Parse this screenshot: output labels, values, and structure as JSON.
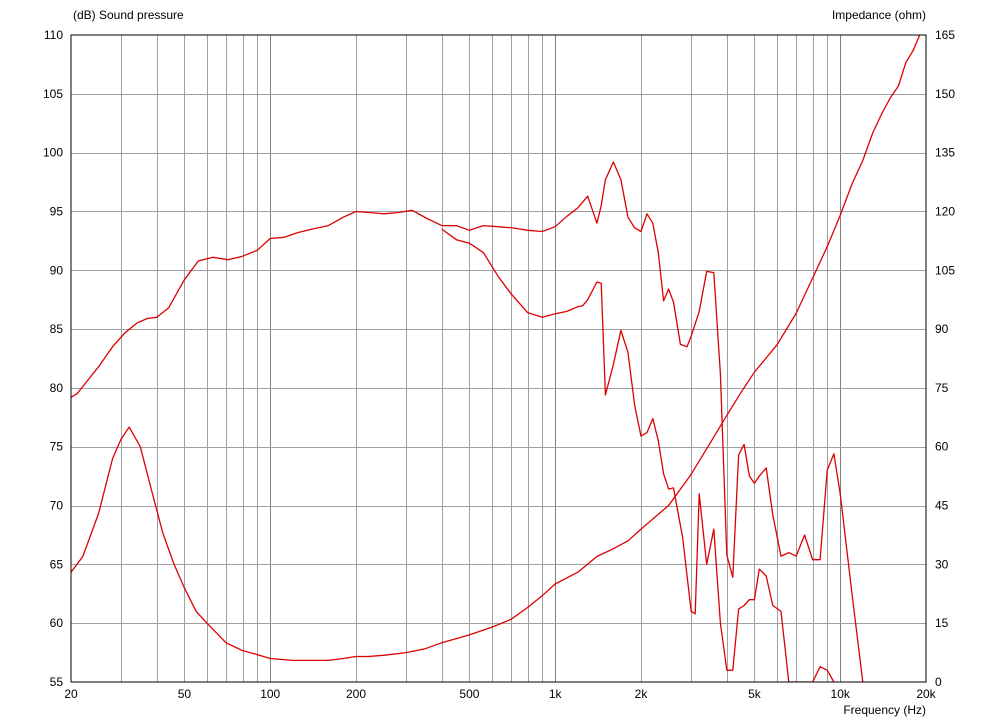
{
  "chart_data": {
    "type": "line",
    "title": "",
    "ylabel_left": "(dB)  Sound pressure",
    "ylabel_right": "Impedance  (ohm)",
    "xlabel": "Frequency  (Hz)",
    "x_scale": "log",
    "xlim": [
      20,
      20000
    ],
    "ylim_left": [
      55,
      110
    ],
    "ylim_right": [
      0,
      165
    ],
    "grid": true,
    "line_color": "#dd0000",
    "x_ticks": [
      {
        "value": 20,
        "label": "20"
      },
      {
        "value": 50,
        "label": "50"
      },
      {
        "value": 100,
        "label": "100"
      },
      {
        "value": 200,
        "label": "200"
      },
      {
        "value": 500,
        "label": "500"
      },
      {
        "value": 1000,
        "label": "1k"
      },
      {
        "value": 2000,
        "label": "2k"
      },
      {
        "value": 5000,
        "label": "5k"
      },
      {
        "value": 10000,
        "label": "10k"
      },
      {
        "value": 20000,
        "label": "20k"
      }
    ],
    "y_ticks_left": [
      "55",
      "60",
      "65",
      "70",
      "75",
      "80",
      "85",
      "90",
      "95",
      "100",
      "105",
      "110"
    ],
    "y_ticks_right": [
      "0",
      "15",
      "30",
      "45",
      "60",
      "75",
      "90",
      "105",
      "120",
      "135",
      "150",
      "165"
    ],
    "series": [
      {
        "axis": "left",
        "x": [
          20,
          21,
          25,
          28,
          31,
          34,
          37,
          40,
          44,
          50,
          56,
          63,
          71,
          80,
          90,
          100,
          112,
          125,
          140,
          160,
          180,
          200,
          225,
          250,
          280,
          315,
          355,
          400,
          450,
          500,
          560,
          630,
          710,
          800,
          900,
          1000,
          1100,
          1200,
          1300,
          1400,
          1450,
          1500,
          1600,
          1700,
          1800,
          1900,
          2000,
          2100,
          2200,
          2300,
          2400,
          2500,
          2600,
          2750,
          2900,
          3000,
          3200,
          3400,
          3600,
          3800,
          4000,
          4200,
          4400,
          4600,
          4800,
          5000,
          5200,
          5500,
          5800,
          6200,
          6600,
          7000,
          7500,
          8000,
          8500,
          9000,
          9500,
          10000,
          11000,
          12000
        ],
        "y": [
          79.2,
          79.5,
          81.8,
          83.5,
          84.7,
          85.5,
          85.9,
          86,
          86.8,
          89.2,
          90.8,
          91.1,
          90.9,
          91.2,
          91.7,
          92.7,
          92.8,
          93.2,
          93.5,
          93.8,
          94.5,
          95,
          94.9,
          94.8,
          94.9,
          95.1,
          94.4,
          93.8,
          93.8,
          93.4,
          93.8,
          93.7,
          93.6,
          93.4,
          93.3,
          93.7,
          94.6,
          95.3,
          96.3,
          94,
          95.5,
          97.7,
          99.2,
          97.7,
          94.5,
          93.6,
          93.3,
          94.8,
          94,
          91.5,
          87.4,
          88.4,
          87.3,
          83.7,
          83.5,
          84.4,
          86.5,
          89.9,
          89.8,
          81.2,
          65.8,
          63.9,
          74.3,
          75.2,
          72.5,
          71.9,
          72.5,
          73.2,
          69.2,
          65.7,
          66,
          65.7,
          67.5,
          65.4,
          65.4,
          73,
          74.4,
          71,
          62.5,
          55
        ]
      },
      {
        "axis": "left",
        "x": [
          400,
          450,
          500,
          560,
          630,
          700,
          800,
          900,
          1000,
          1100,
          1200,
          1250,
          1300,
          1400,
          1450,
          1500,
          1600,
          1700,
          1800,
          1900,
          2000,
          2100,
          2200,
          2300,
          2400,
          2500,
          2600,
          2800,
          3000,
          3100,
          3200,
          3400,
          3600,
          3800,
          4000,
          4200,
          4400,
          4600,
          4800,
          5000,
          5200,
          5500,
          5800,
          6200,
          6600,
          7000,
          8000,
          8500,
          9000,
          9500
        ],
        "y": [
          93.5,
          92.6,
          92.3,
          91.5,
          89.5,
          88,
          86.4,
          86,
          86.3,
          86.5,
          86.9,
          87,
          87.5,
          89,
          88.9,
          79.4,
          82,
          84.9,
          83,
          78.5,
          75.9,
          76.2,
          77.4,
          75.5,
          72.7,
          71.4,
          71.5,
          67.3,
          61,
          60.8,
          71,
          65,
          68,
          60,
          56,
          56,
          61.2,
          61.5,
          62,
          62,
          64.6,
          64,
          61.5,
          61,
          55,
          55,
          55,
          56.3,
          56,
          55
        ]
      },
      {
        "axis": "right",
        "x": [
          20,
          22,
          25,
          28,
          30,
          32,
          35,
          38,
          42,
          46,
          50,
          55,
          60,
          70,
          80,
          90,
          100,
          120,
          140,
          160,
          180,
          200,
          220,
          250,
          300,
          350,
          400,
          500,
          600,
          700,
          800,
          900,
          1000,
          1200,
          1400,
          1600,
          1800,
          2000,
          2500,
          3000,
          3500,
          4000,
          4500,
          5000,
          6000,
          7000,
          8000,
          9000,
          10000,
          11000,
          12000,
          13000,
          14000,
          15000,
          16000,
          17000,
          18000,
          19000,
          20000
        ],
        "y": [
          28,
          32,
          43,
          57,
          62,
          65,
          60,
          50,
          38,
          30,
          24,
          18,
          15,
          10,
          8,
          7,
          6,
          5.5,
          5.5,
          5.5,
          6,
          6.5,
          6.5,
          6.8,
          7.5,
          8.5,
          10,
          12,
          14,
          16,
          19,
          22,
          25,
          28,
          32,
          34,
          36,
          39,
          45,
          53,
          61,
          68,
          74,
          79,
          86,
          94,
          103,
          111,
          119,
          127,
          133,
          140,
          145,
          149,
          152,
          158,
          161,
          165,
          170
        ]
      }
    ]
  }
}
